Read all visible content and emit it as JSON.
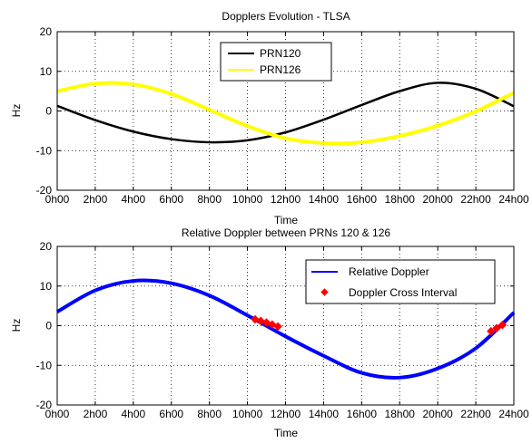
{
  "chart_data": [
    {
      "type": "line",
      "title": "Dopplers Evolution - TLSA",
      "xlabel": "Time",
      "ylabel": "Hz",
      "xlim": [
        0,
        24
      ],
      "ylim": [
        -20,
        20
      ],
      "x_ticks": [
        "0h00",
        "2h00",
        "4h00",
        "6h00",
        "8h00",
        "10h00",
        "12h00",
        "14h00",
        "16h00",
        "18h00",
        "20h00",
        "22h00",
        "24h00"
      ],
      "y_ticks": [
        20,
        10,
        0,
        -10,
        -20
      ],
      "grid": true,
      "legend_position": "top-center",
      "series": [
        {
          "name": "PRN120",
          "color": "#000000",
          "x": [
            0,
            2,
            4,
            6,
            8,
            10,
            12,
            14,
            16,
            18,
            20,
            22,
            24
          ],
          "y": [
            1.3,
            -2.3,
            -5.2,
            -7.1,
            -7.9,
            -7.4,
            -5.4,
            -2.2,
            1.5,
            5.0,
            7.1,
            5.6,
            1.2
          ]
        },
        {
          "name": "PRN126",
          "color": "#ffff00",
          "x": [
            0,
            2,
            4,
            6,
            8,
            10,
            12,
            14,
            16,
            18,
            20,
            22,
            24
          ],
          "y": [
            5.0,
            6.9,
            6.7,
            4.3,
            0.3,
            -3.8,
            -6.9,
            -8.1,
            -7.9,
            -6.3,
            -3.7,
            -0.1,
            4.6
          ]
        }
      ]
    },
    {
      "type": "scatter",
      "title": "Relative Doppler between PRNs 120 & 126",
      "xlabel": "Time",
      "ylabel": "Hz",
      "xlim": [
        0,
        24
      ],
      "ylim": [
        -20,
        20
      ],
      "x_ticks": [
        "0h00",
        "2h00",
        "4h00",
        "6h00",
        "8h00",
        "10h00",
        "12h00",
        "14h00",
        "16h00",
        "18h00",
        "20h00",
        "22h00",
        "24h00"
      ],
      "y_ticks": [
        20,
        10,
        0,
        -10,
        -20
      ],
      "grid": true,
      "legend_position": "top-right",
      "series": [
        {
          "name": "Relative Doppler",
          "color": "#0000ff",
          "x": [
            0,
            2,
            4,
            6,
            8,
            10,
            12,
            14,
            16,
            18,
            20,
            22,
            24
          ],
          "y": [
            3.5,
            8.9,
            11.3,
            10.7,
            7.6,
            2.6,
            -2.7,
            -7.6,
            -11.9,
            -13.1,
            -10.8,
            -5.7,
            3.3
          ]
        },
        {
          "name": "Doppler Cross Interval",
          "color": "#ff0000",
          "x": [
            10.4,
            10.7,
            11.0,
            11.3,
            11.6,
            22.8,
            23.1,
            23.4
          ],
          "y": [
            1.6,
            1.2,
            0.8,
            0.3,
            -0.2,
            -1.4,
            -0.6,
            0.2
          ]
        }
      ]
    }
  ]
}
